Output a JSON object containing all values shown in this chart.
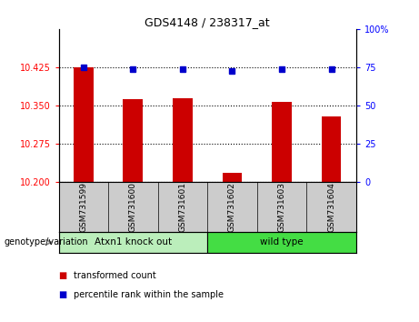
{
  "title": "GDS4148 / 238317_at",
  "samples": [
    "GSM731599",
    "GSM731600",
    "GSM731601",
    "GSM731602",
    "GSM731603",
    "GSM731604"
  ],
  "red_values": [
    10.425,
    10.362,
    10.365,
    10.218,
    10.357,
    10.328
  ],
  "blue_values": [
    75.0,
    74.0,
    73.5,
    72.5,
    73.5,
    73.5
  ],
  "ylim_left": [
    10.2,
    10.5
  ],
  "ylim_right": [
    0,
    100
  ],
  "yticks_left": [
    10.2,
    10.275,
    10.35,
    10.425
  ],
  "yticks_right": [
    0,
    25,
    50,
    75,
    100
  ],
  "ytick_labels_right": [
    "0",
    "25",
    "50",
    "75",
    "100%"
  ],
  "baseline": 10.2,
  "group1_label": "Atxn1 knock out",
  "group2_label": "wild type",
  "group1_indices": [
    0,
    1,
    2
  ],
  "group2_indices": [
    3,
    4,
    5
  ],
  "x_label_bottom": "genotype/variation",
  "legend_red": "transformed count",
  "legend_blue": "percentile rank within the sample",
  "bar_color": "#cc0000",
  "dot_color": "#0000cc",
  "group1_bg": "#bbeebb",
  "group2_bg": "#44dd44",
  "tick_area_color": "#cccccc",
  "bar_width": 0.4
}
